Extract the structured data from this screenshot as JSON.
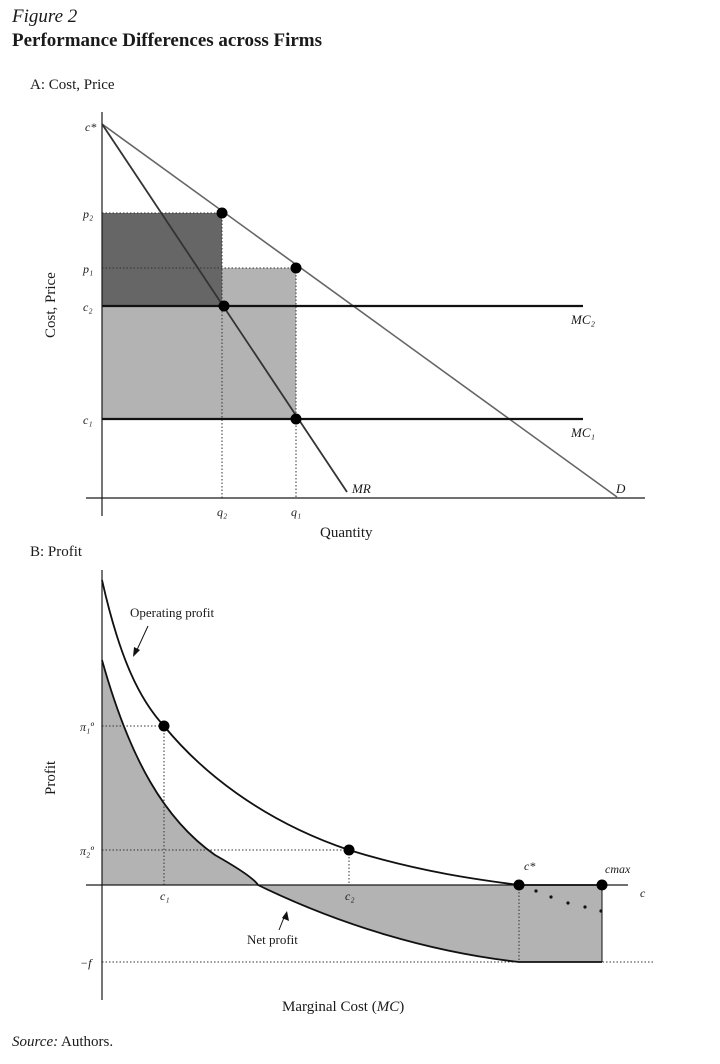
{
  "figure": {
    "label": "Figure 2",
    "title": "Performance Differences across Firms",
    "source_prefix": "Source:",
    "source_text": " Authors."
  },
  "panel_a": {
    "label": "A: Cost, Price",
    "y_axis_title": "Cost, Price",
    "x_axis_title": "Quantity",
    "y_ticks": {
      "c_star": "c*",
      "p2": "p₂",
      "p1": "p₁",
      "c2": "c₂",
      "c1": "c₁"
    },
    "x_ticks": {
      "q2": "q₂",
      "q1": "q₁"
    },
    "curves": {
      "mc2": "MC₂",
      "mc1": "MC₁",
      "mr": "MR",
      "d": "D"
    },
    "colors": {
      "dark_area": "#666666",
      "light_area": "#b3b3b3",
      "demand_line": "#666666",
      "mr_line": "#333333"
    }
  },
  "panel_b": {
    "label": "B: Profit",
    "y_axis_title": "Profit",
    "x_axis_title_prefix": "Marginal Cost (",
    "x_axis_title_var": "MC",
    "x_axis_title_suffix": ")",
    "y_ticks": {
      "pi1": "π₁º",
      "pi2": "π₂º",
      "neg_f": "−f"
    },
    "x_ticks": {
      "c1": "c₁",
      "c2": "c₂",
      "c_star": "c*",
      "c_max": "cmax",
      "c": "c"
    },
    "annotations": {
      "operating": "Operating profit",
      "net": "Net profit"
    },
    "colors": {
      "area": "#b3b3b3"
    }
  }
}
